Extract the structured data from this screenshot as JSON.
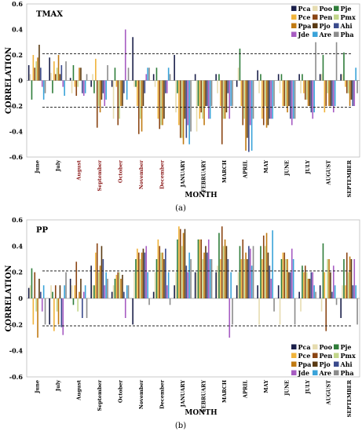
{
  "series_names": [
    "Pca",
    "Poo",
    "Pje",
    "Pce",
    "Pen",
    "Pmx",
    "Ppa",
    "Pjo",
    "Ahi",
    "Jde",
    "Are",
    "Pha"
  ],
  "colors": {
    "Pca": "#1a1f4a",
    "Poo": "#e6dcb0",
    "Pje": "#2f7d3a",
    "Pce": "#f0b33a",
    "Pen": "#8b4513",
    "Pmx": "#c2d68a",
    "Ppa": "#c07a12",
    "Pjo": "#5a3a12",
    "Ahi": "#3a4a8c",
    "Jde": "#a75cc2",
    "Are": "#3aa3d9",
    "Pha": "#8c8c8c"
  },
  "panel_a": {
    "label_tl": "TMAX",
    "caption": "(a)",
    "ylabel": "CORRELATION",
    "xlabel": "MONTH",
    "threshold": 0.21,
    "ylim": [
      -0.6,
      0.6
    ],
    "yticks": [
      "0.6",
      "0.4",
      "0.2",
      "0",
      "-0.2",
      "-0.4",
      "-0.6"
    ],
    "months": [
      "June",
      "July",
      "August",
      "September",
      "October",
      "November",
      "December",
      "JANUARY",
      "FEBRUARY",
      "MARCH",
      "APRIL",
      "MAY",
      "JUNE",
      "JULY",
      "AUGUST",
      "SEPTEMBER"
    ]
  },
  "panel_b": {
    "label_tl": "PP",
    "caption": "(b)",
    "ylabel": "CORRELATION",
    "xlabel": "MONTH",
    "threshold": 0.21,
    "ylim": [
      -0.6,
      0.6
    ],
    "yticks": [
      "0.6",
      "0.4",
      "0.2",
      "0",
      "-0.2",
      "-0.4",
      "-0.6"
    ],
    "months": [
      "June",
      "July",
      "August",
      "September",
      "October",
      "November",
      "December",
      "JANUARY",
      "FEBRUARY",
      "MARCH",
      "APRIL",
      "MAY",
      "JUNE",
      "JULY",
      "AUGUST",
      "SEPTEMBER"
    ]
  },
  "chart_data": [
    {
      "type": "bar",
      "title": "TMAX",
      "xlabel": "MONTH",
      "ylabel": "CORRELATION",
      "ylim": [
        -0.6,
        0.6
      ],
      "reference_lines": [
        0.21,
        -0.21
      ],
      "categories": [
        "June",
        "July",
        "August",
        "September",
        "October",
        "November",
        "December",
        "JANUARY",
        "FEBRUARY",
        "MARCH",
        "APRIL",
        "MAY",
        "JUNE",
        "JULY",
        "AUGUST",
        "SEPTEMBER"
      ],
      "series": [
        {
          "name": "Pca",
          "values": [
            0.12,
            0.18,
            0.02,
            -0.05,
            -0.05,
            0.34,
            0.05,
            0.2,
            0.05,
            0.05,
            -0.05,
            0.08,
            0.05,
            0.05,
            0.05,
            0.05
          ]
        },
        {
          "name": "Poo",
          "values": [
            0.05,
            0.06,
            -0.1,
            0.05,
            -0.3,
            -0.05,
            -0.05,
            -0.25,
            -0.4,
            -0.1,
            0.1,
            -0.1,
            -0.1,
            -0.1,
            0.05,
            0.05
          ]
        },
        {
          "name": "Pje",
          "values": [
            -0.15,
            -0.1,
            0.12,
            -0.1,
            0.1,
            -0.05,
            0.1,
            -0.1,
            -0.2,
            0.05,
            0.25,
            0.05,
            0.05,
            0.05,
            0.2,
            0.22
          ]
        },
        {
          "name": "Pce",
          "values": [
            0.2,
            0.15,
            -0.05,
            0.17,
            -0.05,
            -0.2,
            -0.3,
            -0.35,
            -0.3,
            -0.2,
            -0.2,
            -0.3,
            -0.2,
            -0.1,
            -0.25,
            -0.05
          ]
        },
        {
          "name": "Pen",
          "values": [
            0.1,
            0.05,
            -0.12,
            -0.37,
            -0.35,
            -0.42,
            -0.38,
            -0.45,
            -0.25,
            -0.5,
            -0.35,
            -0.35,
            -0.2,
            -0.15,
            -0.2,
            -0.1
          ]
        },
        {
          "name": "Pmx",
          "values": [
            0.15,
            0.1,
            -0.05,
            -0.2,
            -0.3,
            -0.3,
            -0.35,
            -0.45,
            -0.3,
            -0.3,
            -0.3,
            -0.2,
            -0.2,
            -0.15,
            -0.1,
            -0.1
          ]
        },
        {
          "name": "Ppa",
          "values": [
            0.18,
            0.2,
            0.1,
            -0.25,
            -0.2,
            -0.4,
            -0.35,
            -0.5,
            -0.35,
            -0.3,
            -0.55,
            -0.37,
            -0.25,
            -0.2,
            -0.2,
            -0.2
          ]
        },
        {
          "name": "Pjo",
          "values": [
            0.28,
            0.05,
            0.1,
            -0.15,
            -0.2,
            -0.2,
            -0.3,
            -0.3,
            -0.2,
            -0.25,
            -0.45,
            -0.35,
            -0.2,
            -0.2,
            -0.2,
            -0.15
          ]
        },
        {
          "name": "Ahi",
          "values": [
            0.1,
            0.12,
            -0.1,
            -0.1,
            -0.1,
            -0.1,
            -0.1,
            -0.45,
            -0.2,
            -0.1,
            -0.56,
            -0.3,
            -0.3,
            -0.25,
            -0.2,
            -0.2
          ]
        },
        {
          "name": "Jde",
          "values": [
            -0.05,
            -0.05,
            -0.12,
            -0.2,
            0.4,
            0.05,
            -0.1,
            -0.35,
            -0.3,
            -0.3,
            -0.35,
            -0.3,
            -0.35,
            -0.3,
            -0.25,
            -0.2
          ]
        },
        {
          "name": "Are",
          "values": [
            -0.15,
            -0.12,
            -0.1,
            -0.15,
            -0.15,
            0.1,
            0.1,
            -0.5,
            -0.3,
            -0.2,
            -0.55,
            -0.3,
            -0.3,
            -0.25,
            -0.2,
            0.1
          ]
        },
        {
          "name": "Pha",
          "values": [
            -0.1,
            0.15,
            0.05,
            0.12,
            0.1,
            0.1,
            0.05,
            -0.4,
            -0.2,
            -0.2,
            -0.3,
            -0.2,
            -0.3,
            0.3,
            0.3,
            -0.1
          ]
        }
      ]
    },
    {
      "type": "bar",
      "title": "PP",
      "xlabel": "MONTH",
      "ylabel": "CORRELATION",
      "ylim": [
        -0.6,
        0.6
      ],
      "reference_lines": [
        0.21,
        -0.21
      ],
      "categories": [
        "June",
        "July",
        "August",
        "September",
        "October",
        "November",
        "December",
        "JANUARY",
        "FEBRUARY",
        "MARCH",
        "APRIL",
        "MAY",
        "JUNE",
        "JULY",
        "AUGUST",
        "SEPTEMBER"
      ],
      "series": [
        {
          "name": "Pca",
          "values": [
            0.08,
            -0.2,
            0.15,
            0.25,
            0.05,
            -0.2,
            0.05,
            0.1,
            0.2,
            0.2,
            0.1,
            0.1,
            0.1,
            0.05,
            0.1,
            -0.15
          ]
        },
        {
          "name": "Poo",
          "values": [
            0.1,
            0.1,
            0.1,
            0.1,
            0.1,
            0.2,
            0.2,
            0.2,
            0.2,
            0.25,
            0.2,
            -0.2,
            -0.2,
            -0.1,
            -0.1,
            0.1
          ]
        },
        {
          "name": "Pje",
          "values": [
            0.23,
            0.05,
            -0.05,
            0.1,
            0.15,
            0.3,
            0.3,
            0.45,
            0.45,
            0.5,
            0.4,
            0.4,
            0.3,
            0.25,
            0.42,
            0.3
          ]
        },
        {
          "name": "Pce",
          "values": [
            -0.2,
            -0.25,
            0.1,
            0.35,
            0.18,
            0.38,
            0.45,
            0.55,
            0.45,
            0.3,
            0.3,
            0.3,
            0.35,
            0.2,
            0.2,
            0.1
          ]
        },
        {
          "name": "Pen",
          "values": [
            0.2,
            0.1,
            0.28,
            0.42,
            0.2,
            0.35,
            0.4,
            0.53,
            0.45,
            0.55,
            0.45,
            0.48,
            0.35,
            0.25,
            -0.25,
            0.35
          ]
        },
        {
          "name": "Pmx",
          "values": [
            -0.1,
            -0.1,
            -0.1,
            0.2,
            0.2,
            0.3,
            0.35,
            0.4,
            0.3,
            0.4,
            0.3,
            0.4,
            0.3,
            0.2,
            0.3,
            0.2
          ]
        },
        {
          "name": "Ppa",
          "values": [
            -0.3,
            -0.2,
            0.05,
            0.25,
            0.15,
            0.35,
            0.35,
            0.5,
            0.35,
            0.45,
            0.35,
            0.5,
            0.3,
            0.15,
            0.3,
            0.32
          ]
        },
        {
          "name": "Pjo",
          "values": [
            0.15,
            0.1,
            0.15,
            0.4,
            0.18,
            0.38,
            0.3,
            0.53,
            0.4,
            0.4,
            0.3,
            0.35,
            0.2,
            0.15,
            0.2,
            0.3
          ]
        },
        {
          "name": "Ahi",
          "values": [
            0.05,
            -0.22,
            -0.15,
            0.3,
            0.05,
            0.35,
            0.38,
            0.25,
            0.35,
            0.3,
            0.4,
            0.25,
            0.2,
            0.2,
            0.05,
            0.1
          ]
        },
        {
          "name": "Jde",
          "values": [
            -0.1,
            -0.28,
            0.05,
            0.1,
            -0.15,
            0.4,
            0.1,
            0.2,
            0.45,
            -0.3,
            0.38,
            0.15,
            0.38,
            0.2,
            0.25,
            0.3
          ]
        },
        {
          "name": "Are",
          "values": [
            0.1,
            0.1,
            0.1,
            0.2,
            0.1,
            0.2,
            0.2,
            0.35,
            0.3,
            0.2,
            0.25,
            0.52,
            0.3,
            0.1,
            0.1,
            0.1
          ]
        },
        {
          "name": "Pha",
          "values": [
            -0.2,
            0.2,
            -0.15,
            0.15,
            0.1,
            -0.05,
            -0.05,
            0.3,
            0.3,
            -0.2,
            0.4,
            -0.1,
            -0.2,
            0.05,
            -0.05,
            -0.2
          ]
        }
      ]
    }
  ]
}
